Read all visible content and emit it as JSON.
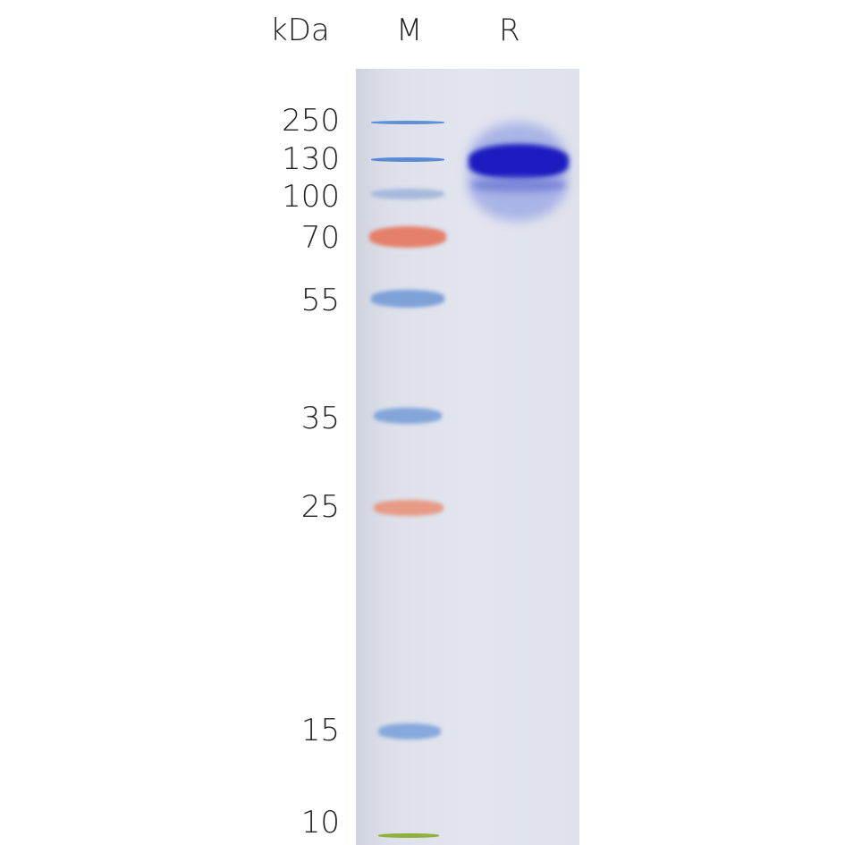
{
  "unit_label": "kDa",
  "lanes": [
    {
      "label": "M"
    },
    {
      "label": "R"
    }
  ],
  "marker_sizes": [
    "250",
    "130",
    "100",
    "70",
    "55",
    "35",
    "25",
    "15",
    "10"
  ],
  "colors": {
    "marker_blue": "#6f9ad8",
    "marker_red": "#e4866f",
    "marker_green": "#8fb03a",
    "sample_band": "#1f1fc0",
    "gel": "#e0e3ec"
  }
}
